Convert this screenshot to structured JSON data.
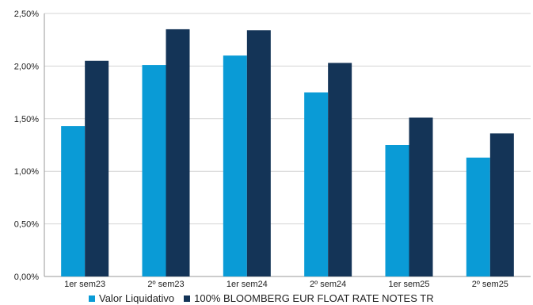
{
  "chart_data": {
    "type": "bar",
    "categories": [
      "1er sem23",
      "2º sem23",
      "1er sem24",
      "2º sem24",
      "1er sem25",
      "2º sem25"
    ],
    "series": [
      {
        "name": "Valor Liquidativo",
        "color": "#0a9bd6",
        "values": [
          1.43,
          2.01,
          2.1,
          1.75,
          1.25,
          1.13
        ]
      },
      {
        "name": "100% BLOOMBERG EUR FLOAT RATE NOTES TR",
        "color": "#143457",
        "values": [
          2.05,
          2.35,
          2.34,
          2.03,
          1.51,
          1.36
        ]
      }
    ],
    "y_ticks": [
      "0,00%",
      "0,50%",
      "1,00%",
      "1,50%",
      "2,00%",
      "2,50%"
    ],
    "ylim": [
      0,
      2.5
    ],
    "grid": true,
    "legend_position": "bottom",
    "title": "",
    "xlabel": "",
    "ylabel": ""
  }
}
